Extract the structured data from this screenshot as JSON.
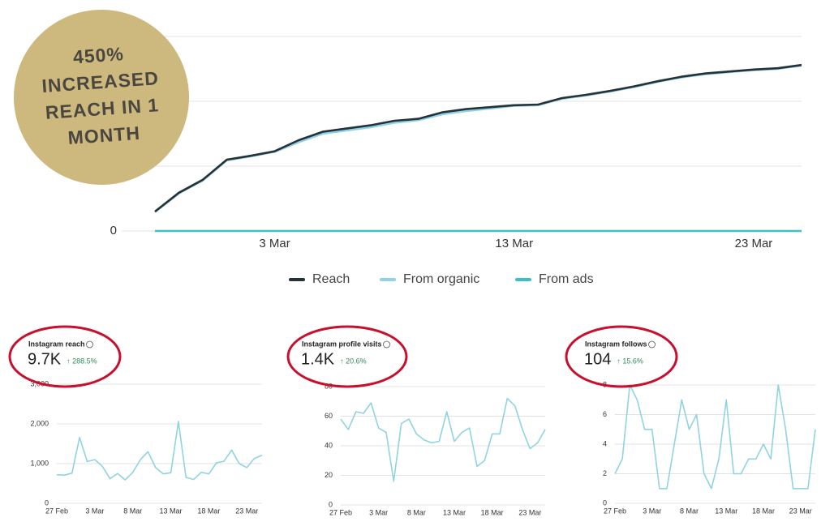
{
  "badge": [
    "450%",
    "INCREASED",
    "REACH IN 1",
    "MONTH"
  ],
  "chart_data": [
    {
      "type": "line",
      "x": [
        0,
        1,
        2,
        3,
        4,
        5,
        6,
        7,
        8,
        9,
        10,
        11,
        12,
        13,
        14,
        15,
        16,
        17,
        18,
        19,
        20,
        21,
        22,
        23,
        24,
        25,
        26,
        27
      ],
      "xlim": [
        0,
        27
      ],
      "xticks": [
        {
          "value": 5,
          "label": "3 Mar"
        },
        {
          "value": 15,
          "label": "13 Mar"
        },
        {
          "value": 25,
          "label": "23 Mar"
        }
      ],
      "ylim": [
        0,
        3
      ],
      "yticks": [
        0
      ],
      "gridlines": [
        1,
        2,
        3
      ],
      "series": [
        {
          "name": "Reach",
          "color": "#263238",
          "values": [
            0.3,
            0.59,
            0.79,
            1.1,
            1.16,
            1.23,
            1.4,
            1.53,
            1.58,
            1.63,
            1.7,
            1.73,
            1.83,
            1.88,
            1.91,
            1.94,
            1.95,
            2.05,
            2.1,
            2.16,
            2.23,
            2.31,
            2.38,
            2.43,
            2.46,
            2.49,
            2.51,
            2.56
          ]
        },
        {
          "name": "From organic",
          "color": "#8fd3ea",
          "values": [
            0.29,
            0.58,
            0.78,
            1.09,
            1.15,
            1.22,
            1.37,
            1.5,
            1.55,
            1.6,
            1.67,
            1.71,
            1.8,
            1.85,
            1.89,
            1.93,
            1.94,
            2.04,
            2.09,
            2.15,
            2.22,
            2.3,
            2.37,
            2.42,
            2.45,
            2.48,
            2.5,
            2.55
          ]
        },
        {
          "name": "From ads",
          "color": "#3dbfc6",
          "values": [
            0,
            0,
            0,
            0,
            0,
            0,
            0,
            0,
            0,
            0,
            0,
            0,
            0,
            0,
            0,
            0,
            0,
            0,
            0,
            0,
            0,
            0,
            0,
            0,
            0,
            0,
            0,
            0
          ]
        }
      ]
    },
    {
      "type": "line",
      "title": "Instagram reach",
      "value": "9.7K",
      "change": "↑ 288.5%",
      "x": [
        0,
        1,
        2,
        3,
        4,
        5,
        6,
        7,
        8,
        9,
        10,
        11,
        12,
        13,
        14,
        15,
        16,
        17,
        18,
        19,
        20,
        21,
        22,
        23,
        24,
        25,
        26,
        27
      ],
      "xlim": [
        0,
        27
      ],
      "xticks": [
        {
          "value": 0,
          "label": "27 Feb"
        },
        {
          "value": 5,
          "label": "3 Mar"
        },
        {
          "value": 10,
          "label": "8 Mar"
        },
        {
          "value": 15,
          "label": "13 Mar"
        },
        {
          "value": 20,
          "label": "18 Mar"
        },
        {
          "value": 25,
          "label": "23 Mar"
        }
      ],
      "ylim": [
        0,
        3000
      ],
      "yticks": [
        0,
        {
          "value": 1000,
          "label": "1,000"
        },
        {
          "value": 2000,
          "label": "2,000"
        },
        {
          "value": 3000,
          "label": "3,000"
        }
      ],
      "series": [
        {
          "color": "#8fd4e0",
          "values": [
            720,
            710,
            760,
            1660,
            1050,
            1100,
            930,
            620,
            750,
            590,
            780,
            1100,
            1300,
            900,
            740,
            770,
            2060,
            650,
            600,
            780,
            740,
            1020,
            1060,
            1340,
            1000,
            900,
            1130,
            1210
          ]
        }
      ]
    },
    {
      "type": "line",
      "title": "Instagram profile visits",
      "value": "1.4K",
      "change": "↑ 20.6%",
      "x": [
        0,
        1,
        2,
        3,
        4,
        5,
        6,
        7,
        8,
        9,
        10,
        11,
        12,
        13,
        14,
        15,
        16,
        17,
        18,
        19,
        20,
        21,
        22,
        23,
        24,
        25,
        26,
        27
      ],
      "xlim": [
        0,
        27
      ],
      "xticks": [
        {
          "value": 0,
          "label": "27 Feb"
        },
        {
          "value": 5,
          "label": "3 Mar"
        },
        {
          "value": 10,
          "label": "8 Mar"
        },
        {
          "value": 15,
          "label": "13 Mar"
        },
        {
          "value": 20,
          "label": "18 Mar"
        },
        {
          "value": 25,
          "label": "23 Mar"
        }
      ],
      "ylim": [
        0,
        80
      ],
      "yticks": [
        0,
        20,
        40,
        60,
        80
      ],
      "series": [
        {
          "color": "#8fd4e0",
          "values": [
            58,
            51,
            63,
            62,
            69,
            52,
            49,
            16,
            55,
            58,
            48,
            44,
            42,
            43,
            63,
            43,
            49,
            52,
            26,
            30,
            48,
            48,
            72,
            67,
            51,
            38,
            42,
            51
          ]
        }
      ]
    },
    {
      "type": "line",
      "title": "Instagram follows",
      "value": "104",
      "change": "↑ 15.6%",
      "x": [
        0,
        1,
        2,
        3,
        4,
        5,
        6,
        7,
        8,
        9,
        10,
        11,
        12,
        13,
        14,
        15,
        16,
        17,
        18,
        19,
        20,
        21,
        22,
        23,
        24,
        25,
        26,
        27
      ],
      "xlim": [
        0,
        27
      ],
      "xticks": [
        {
          "value": 0,
          "label": "27 Feb"
        },
        {
          "value": 5,
          "label": "3 Mar"
        },
        {
          "value": 10,
          "label": "8 Mar"
        },
        {
          "value": 15,
          "label": "13 Mar"
        },
        {
          "value": 20,
          "label": "18 Mar"
        },
        {
          "value": 25,
          "label": "23 Mar"
        }
      ],
      "ylim": [
        0,
        8
      ],
      "yticks": [
        0,
        2,
        4,
        6,
        8
      ],
      "series": [
        {
          "color": "#8fd4e0",
          "values": [
            2,
            3,
            8,
            7,
            5,
            5,
            1,
            1,
            4,
            7,
            5,
            6,
            2,
            1,
            3,
            7,
            2,
            2,
            3,
            3,
            4,
            3,
            8,
            5,
            1,
            1,
            1,
            5
          ]
        }
      ]
    }
  ]
}
